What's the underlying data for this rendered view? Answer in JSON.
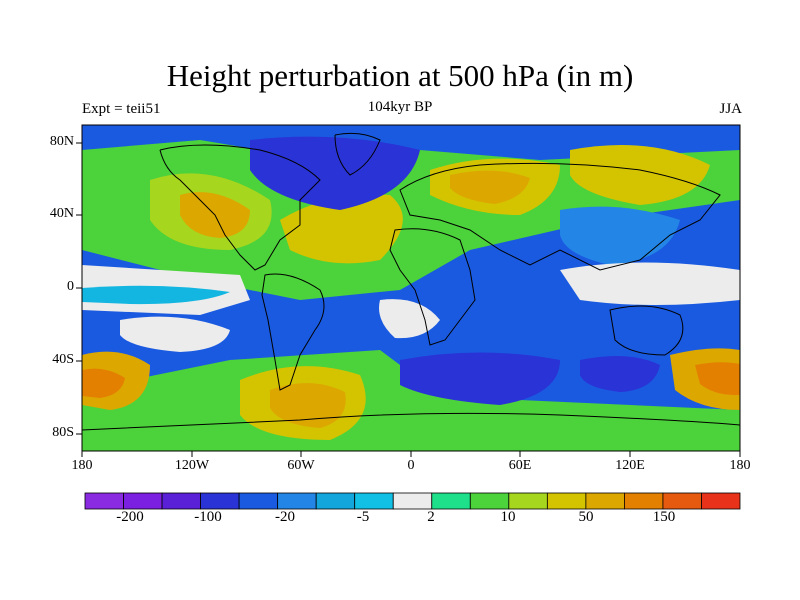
{
  "title": "Height perturbation at 500 hPa (in m)",
  "subtitle_left": "Expt = teii51",
  "subtitle_center": "104kyr BP",
  "subtitle_right": "JJA",
  "lat_labels": [
    "80N",
    "40N",
    "0",
    "40S",
    "80S"
  ],
  "lon_labels": [
    "180",
    "120W",
    "60W",
    "0",
    "60E",
    "120E",
    "180"
  ],
  "colorbar": {
    "colors": [
      "#8a2be2",
      "#7b1fe0",
      "#5a20d8",
      "#2a33d6",
      "#1a5ae0",
      "#2386e6",
      "#12a6dd",
      "#12c0e6",
      "#ececec",
      "#1ee08a",
      "#4cd23a",
      "#a6d61e",
      "#d4c400",
      "#dca800",
      "#e48000",
      "#e65a10",
      "#e8321a"
    ],
    "labels": [
      "-200",
      "-100",
      "-20",
      "-5",
      "2",
      "10",
      "50",
      "150"
    ]
  },
  "map_colors": {
    "ocean_white": "#ececec",
    "blue_deep": "#2a33d6",
    "blue_mid": "#1a5ae0",
    "blue_light": "#2386e6",
    "cyan": "#12b6e0",
    "green_light": "#1ee08a",
    "green": "#4cd23a",
    "yellow_green": "#a6d61e",
    "yellow": "#d4c400",
    "orange": "#dca800",
    "orange_dark": "#e48000"
  }
}
